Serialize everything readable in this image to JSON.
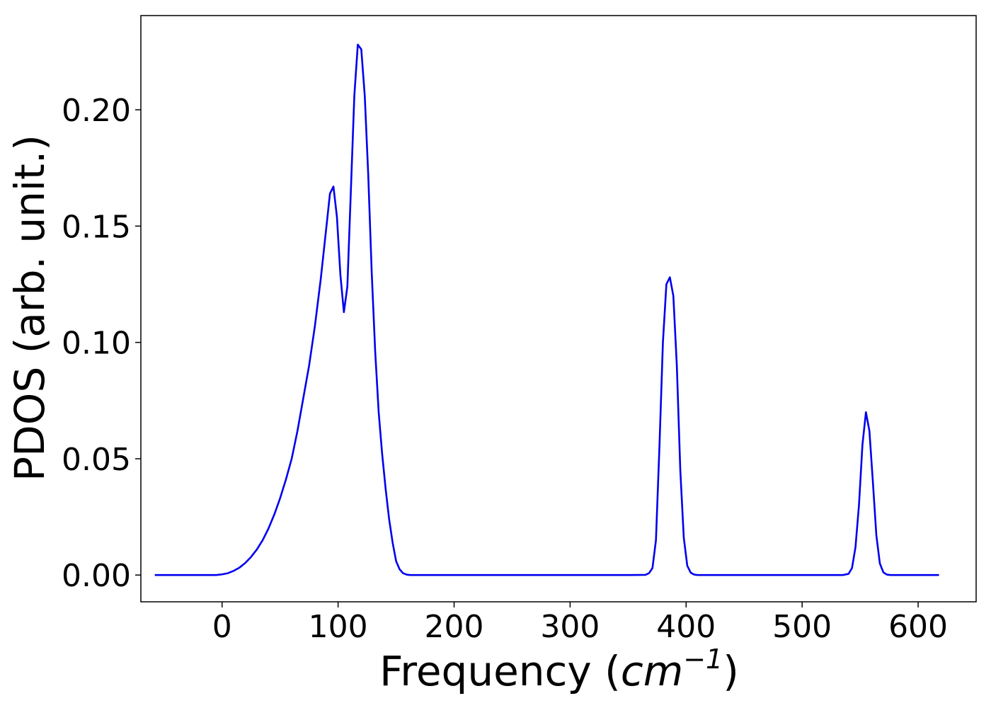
{
  "chart_data": {
    "type": "line",
    "title": "",
    "xlabel": "Frequency (",
    "xlabel_unit_base": "cm",
    "xlabel_unit_exp": "−1",
    "xlabel_close": ")",
    "ylabel": "PDOS (arb. unit.)",
    "xlim": [
      -70,
      650
    ],
    "ylim": [
      -0.0115,
      0.2405
    ],
    "grid": false,
    "legend": "none",
    "xticks": [
      0,
      100,
      200,
      300,
      400,
      500,
      600
    ],
    "xtick_labels": [
      "0",
      "100",
      "200",
      "300",
      "400",
      "500",
      "600"
    ],
    "yticks": [
      0.0,
      0.05,
      0.1,
      0.15,
      0.2
    ],
    "ytick_labels": [
      "0.00",
      "0.05",
      "0.10",
      "0.15",
      "0.20"
    ],
    "series": [
      {
        "color": "#0000ee",
        "x": [
          -58,
          -40,
          -20,
          -5,
          0,
          5,
          10,
          15,
          20,
          25,
          30,
          35,
          40,
          45,
          50,
          55,
          60,
          65,
          70,
          75,
          80,
          85,
          90,
          93,
          96,
          99,
          102,
          105,
          108,
          111,
          114,
          117,
          120,
          123,
          126,
          129,
          132,
          135,
          138,
          141,
          144,
          147,
          150,
          153,
          156,
          159,
          162,
          165,
          170,
          180,
          200,
          250,
          300,
          350,
          365,
          368,
          371,
          374,
          377,
          380,
          383,
          386,
          389,
          392,
          395,
          398,
          401,
          404,
          407,
          410,
          415,
          450,
          500,
          535,
          540,
          543,
          546,
          549,
          552,
          555,
          558,
          561,
          564,
          567,
          570,
          573,
          576,
          579,
          582,
          590,
          618
        ],
        "y": [
          0,
          0,
          0,
          0,
          0.0003,
          0.0008,
          0.0018,
          0.0032,
          0.0052,
          0.0078,
          0.011,
          0.015,
          0.02,
          0.026,
          0.033,
          0.041,
          0.05,
          0.062,
          0.076,
          0.09,
          0.107,
          0.127,
          0.15,
          0.164,
          0.167,
          0.154,
          0.129,
          0.113,
          0.124,
          0.165,
          0.206,
          0.228,
          0.226,
          0.206,
          0.172,
          0.13,
          0.096,
          0.07,
          0.052,
          0.037,
          0.024,
          0.014,
          0.006,
          0.0025,
          0.0008,
          0.0002,
          0,
          0,
          0,
          0,
          0,
          0,
          0,
          0,
          0.0001,
          0.0008,
          0.003,
          0.015,
          0.055,
          0.1,
          0.125,
          0.128,
          0.12,
          0.09,
          0.045,
          0.016,
          0.004,
          0.001,
          0.0002,
          0,
          0,
          0,
          0,
          0,
          0.0005,
          0.003,
          0.012,
          0.03,
          0.056,
          0.07,
          0.062,
          0.04,
          0.017,
          0.005,
          0.0012,
          0.0002,
          0,
          0,
          0,
          0,
          0
        ]
      }
    ]
  }
}
